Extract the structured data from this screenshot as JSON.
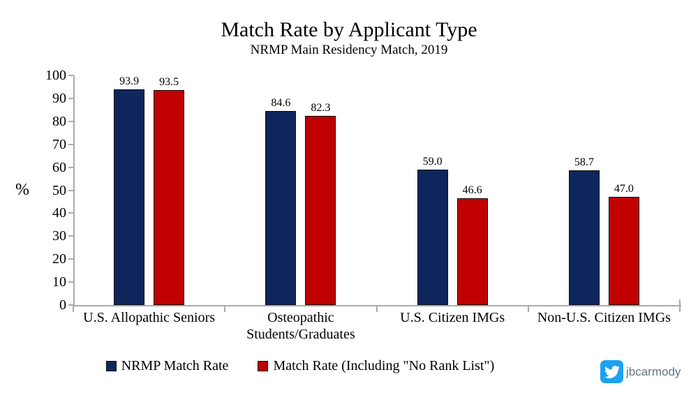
{
  "chart_data": {
    "type": "bar",
    "title": "Match Rate by Applicant Type",
    "subtitle": "NRMP Main Residency Match, 2019",
    "categories": [
      "U.S. Allopathic Seniors",
      "Osteopathic Students/Graduates",
      "U.S. Citizen IMGs",
      "Non-U.S. Citizen IMGs"
    ],
    "series": [
      {
        "name": "NRMP Match Rate",
        "color": "#0f265c",
        "values": [
          93.9,
          84.6,
          59.0,
          58.7
        ]
      },
      {
        "name": "Match Rate (Including \"No Rank List\")",
        "color": "#c00000",
        "values": [
          93.5,
          82.3,
          46.6,
          47.0
        ]
      }
    ],
    "ylabel": "%",
    "ylim": [
      0,
      100
    ],
    "yticks": [
      0,
      10,
      20,
      30,
      40,
      50,
      60,
      70,
      80,
      90,
      100
    ],
    "value_label_decimals": 1,
    "grid": false,
    "legend_position": "bottom",
    "axis_color": "#ababab",
    "bar_border_color": "#0d0d0d"
  },
  "watermark": {
    "handle": "jbcarmody",
    "icon": "twitter-bird-icon",
    "brand_color": "#1da1f2",
    "handle_color": "#66757f"
  }
}
